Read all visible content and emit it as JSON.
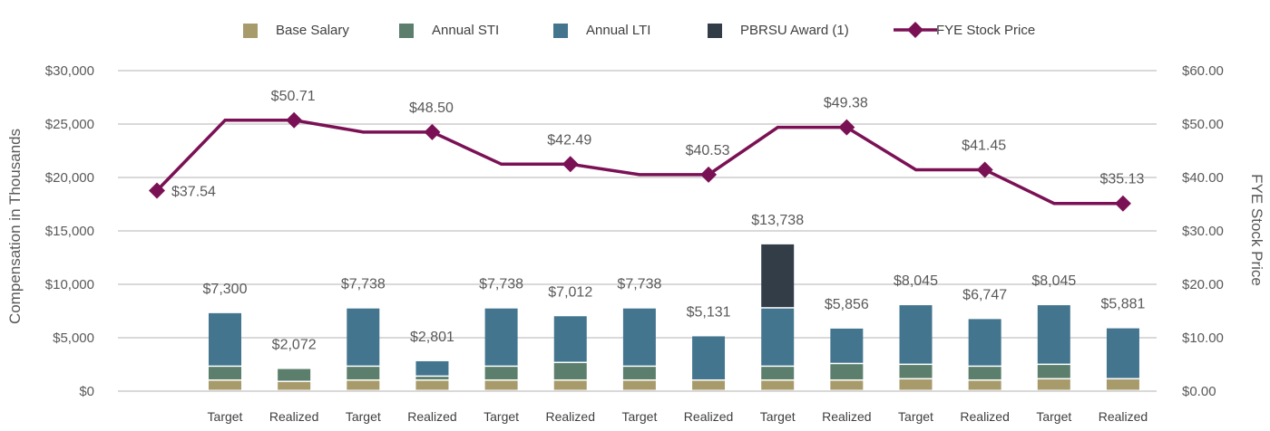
{
  "chart_data": {
    "type": "bar",
    "stacked": true,
    "categories": [
      "Target",
      "Realized",
      "Target",
      "Realized",
      "Target",
      "Realized",
      "Target",
      "Realized",
      "Target",
      "Realized",
      "Target",
      "Realized",
      "Target",
      "Realized"
    ],
    "series": [
      {
        "name": "Base Salary",
        "color": "#a89b6b",
        "values": [
          975,
          850,
          975,
          975,
          975,
          975,
          975,
          975,
          975,
          975,
          1100,
          975,
          1100,
          1100
        ]
      },
      {
        "name": "Annual STI",
        "color": "#5b7f6c",
        "values": [
          1300,
          1222,
          1300,
          370,
          1300,
          1650,
          1300,
          0,
          1300,
          1550,
          1350,
          1300,
          1350,
          0
        ]
      },
      {
        "name": "Annual LTI",
        "color": "#44758f",
        "values": [
          5025,
          0,
          5463,
          1456,
          5463,
          4387,
          5463,
          4156,
          5463,
          3331,
          5595,
          4472,
          5595,
          4781
        ]
      },
      {
        "name": "PBRSU Award (1)",
        "color": "#333d47",
        "values": [
          0,
          0,
          0,
          0,
          0,
          0,
          0,
          0,
          6000,
          0,
          0,
          0,
          0,
          0
        ]
      }
    ],
    "totals": [
      "$7,300",
      "$2,072",
      "$7,738",
      "$2,801",
      "$7,738",
      "$7,012",
      "$7,738",
      "$5,131",
      "$13,738",
      "$5,856",
      "$8,045",
      "$6,747",
      "$8,045",
      "$5,881"
    ],
    "line_series": {
      "name": "FYE Stock Price",
      "color": "#7b1155",
      "points": [
        37.54,
        50.71,
        48.5,
        42.49,
        40.53,
        49.38,
        41.45,
        35.13
      ],
      "labels": [
        "$37.54",
        "$50.71",
        "$48.50",
        "$42.49",
        "$40.53",
        "$49.38",
        "$41.45",
        "$35.13"
      ]
    },
    "ylabel": "Compensation in Thousands",
    "y2label": "FYE Stock Price",
    "ylim": [
      0,
      30000
    ],
    "y2lim": [
      0,
      60
    ],
    "yticks": [
      "$0",
      "$5,000",
      "$10,000",
      "$15,000",
      "$20,000",
      "$25,000",
      "$30,000"
    ],
    "y2ticks": [
      "$0.00",
      "$10.00",
      "$20.00",
      "$30.00",
      "$40.00",
      "$50.00",
      "$60.00"
    ],
    "grid": true,
    "legend_position": "top"
  }
}
